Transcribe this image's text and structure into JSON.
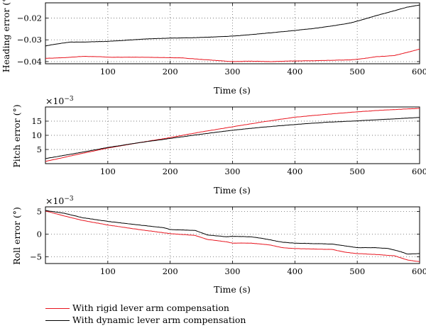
{
  "legend": {
    "items": [
      {
        "label": "With rigid lever arm compensation",
        "color": "#e8141e"
      },
      {
        "label": "With dynamic lever arm compensation",
        "color": "#000000"
      }
    ]
  },
  "chart_data": [
    {
      "type": "line",
      "ylabel": "Heading error (°)",
      "xlabel": "Time (s)",
      "xlim": [
        0,
        600
      ],
      "ylim": [
        -0.041,
        -0.013
      ],
      "xticks": [
        100,
        200,
        300,
        400,
        500,
        600
      ],
      "yticks": [
        -0.04,
        -0.03,
        -0.02
      ],
      "ytick_labels": [
        "−0.04",
        "−0.03",
        "−0.02"
      ],
      "exponent_label": "",
      "grid": true,
      "series": [
        {
          "name": "With rigid lever arm compensation",
          "color": "#e8141e",
          "x": [
            0,
            30,
            60,
            90,
            100,
            120,
            150,
            180,
            200,
            220,
            240,
            260,
            280,
            300,
            330,
            360,
            400,
            430,
            460,
            490,
            510,
            530,
            560,
            600
          ],
          "y": [
            -0.0385,
            -0.0382,
            -0.0376,
            -0.0378,
            -0.038,
            -0.038,
            -0.038,
            -0.0381,
            -0.0382,
            -0.0383,
            -0.0388,
            -0.0392,
            -0.0396,
            -0.04,
            -0.0398,
            -0.04,
            -0.0397,
            -0.0396,
            -0.0394,
            -0.0392,
            -0.0386,
            -0.0378,
            -0.0372,
            -0.0343
          ]
        },
        {
          "name": "With dynamic lever arm compensation",
          "color": "#000000",
          "x": [
            0,
            20,
            40,
            60,
            100,
            140,
            160,
            200,
            240,
            260,
            300,
            330,
            360,
            400,
            430,
            460,
            490,
            510,
            530,
            560,
            580,
            600
          ],
          "y": [
            -0.0328,
            -0.0318,
            -0.031,
            -0.031,
            -0.0307,
            -0.03,
            -0.0296,
            -0.0292,
            -0.029,
            -0.0288,
            -0.0283,
            -0.0276,
            -0.0268,
            -0.0257,
            -0.0248,
            -0.0236,
            -0.0222,
            -0.0206,
            -0.0189,
            -0.0166,
            -0.015,
            -0.014
          ]
        }
      ]
    },
    {
      "type": "line",
      "ylabel": "Pitch error (°)",
      "xlabel": "Time (s)",
      "xlim": [
        0,
        600
      ],
      "ylim": [
        0,
        20
      ],
      "xticks": [
        100,
        200,
        300,
        400,
        500,
        600
      ],
      "yticks": [
        5,
        10,
        15
      ],
      "ytick_labels": [
        "5",
        "10",
        "15"
      ],
      "exponent_label": "×10",
      "exponent_power": "−3",
      "grid": true,
      "series": [
        {
          "name": "With rigid lever arm compensation",
          "color": "#e8141e",
          "x": [
            0,
            50,
            100,
            150,
            200,
            250,
            300,
            350,
            400,
            450,
            500,
            550,
            600
          ],
          "y": [
            0.8,
            3.2,
            5.5,
            7.4,
            9.2,
            11.2,
            13.0,
            14.8,
            16.4,
            17.4,
            18.3,
            19.0,
            19.5
          ]
        },
        {
          "name": "With dynamic lever arm compensation",
          "color": "#000000",
          "x": [
            0,
            50,
            100,
            150,
            200,
            250,
            300,
            350,
            400,
            450,
            500,
            550,
            600
          ],
          "y": [
            1.8,
            3.7,
            5.7,
            7.4,
            8.9,
            10.4,
            11.8,
            12.9,
            13.8,
            14.6,
            15.1,
            15.7,
            16.3
          ]
        }
      ]
    },
    {
      "type": "line",
      "ylabel": "Roll error (°)",
      "xlabel": "Time (s)",
      "xlim": [
        0,
        600
      ],
      "ylim": [
        -6.5,
        6
      ],
      "xticks": [
        100,
        200,
        300,
        400,
        500,
        600
      ],
      "yticks": [
        -5,
        0,
        5
      ],
      "ytick_labels": [
        "−5",
        "0",
        "5"
      ],
      "exponent_label": "×10",
      "exponent_power": "−3",
      "grid": true,
      "series": [
        {
          "name": "With rigid lever arm compensation",
          "color": "#e8141e",
          "x": [
            0,
            30,
            60,
            100,
            150,
            200,
            240,
            260,
            290,
            300,
            330,
            360,
            380,
            400,
            430,
            460,
            480,
            500,
            530,
            560,
            580,
            600
          ],
          "y": [
            5.1,
            4.0,
            3.0,
            2.0,
            1.0,
            0.1,
            -0.3,
            -1.2,
            -1.7,
            -2.0,
            -2.0,
            -2.4,
            -3.0,
            -3.2,
            -3.3,
            -3.4,
            -4.0,
            -4.3,
            -4.5,
            -4.8,
            -5.7,
            -6.1
          ]
        },
        {
          "name": "With dynamic lever arm compensation",
          "color": "#000000",
          "x": [
            0,
            30,
            60,
            100,
            150,
            190,
            200,
            240,
            260,
            290,
            300,
            330,
            350,
            380,
            400,
            430,
            460,
            490,
            500,
            530,
            550,
            570,
            580,
            600
          ],
          "y": [
            5.2,
            4.6,
            3.6,
            2.8,
            2.0,
            1.4,
            1.0,
            0.8,
            -0.2,
            -0.6,
            -0.5,
            -0.6,
            -1.0,
            -1.8,
            -2.0,
            -2.1,
            -2.2,
            -2.8,
            -3.0,
            -3.0,
            -3.2,
            -3.9,
            -4.4,
            -4.3
          ]
        }
      ]
    }
  ]
}
